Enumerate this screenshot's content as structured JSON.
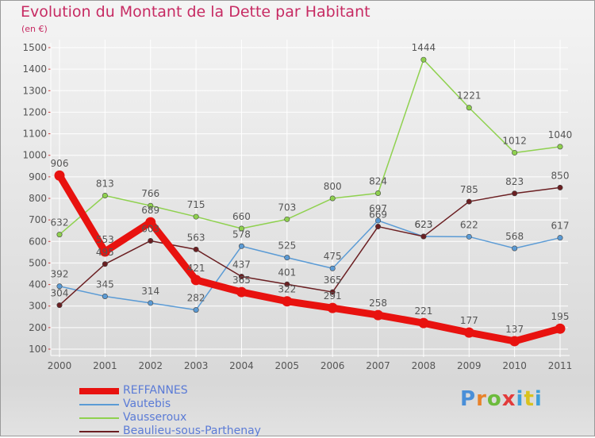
{
  "header": {
    "title": "Evolution du Montant de la Dette par Habitant",
    "subtitle": "(en €)"
  },
  "logo": {
    "text": "Proxiti"
  },
  "chart_data": {
    "type": "line",
    "title": "Evolution du Montant de la Dette par Habitant",
    "subtitle": "(en €)",
    "xlabel": "",
    "ylabel": "",
    "categories": [
      "2000",
      "2001",
      "2002",
      "2003",
      "2004",
      "2005",
      "2006",
      "2007",
      "2008",
      "2009",
      "2010",
      "2011"
    ],
    "ylim": [
      100,
      1500
    ],
    "yticks": [
      100,
      200,
      300,
      400,
      500,
      600,
      700,
      800,
      900,
      1000,
      1100,
      1200,
      1300,
      1400,
      1500
    ],
    "grid": true,
    "legend_position": "bottom-left",
    "series": [
      {
        "name": "REFFANNES",
        "color": "#e8120f",
        "legend_text_color": "#5b7bd6",
        "emphasis": true,
        "values": [
          906,
          553,
          689,
          421,
          365,
          322,
          291,
          258,
          221,
          177,
          137,
          195
        ]
      },
      {
        "name": "Vautebis",
        "color": "#5b9bd5",
        "legend_text_color": "#5b7bd6",
        "emphasis": false,
        "values": [
          392,
          345,
          314,
          282,
          578,
          525,
          475,
          697,
          623,
          622,
          568,
          617
        ]
      },
      {
        "name": "Vausseroux",
        "color": "#8fd14f",
        "legend_text_color": "#5b7bd6",
        "emphasis": false,
        "values": [
          632,
          813,
          766,
          715,
          660,
          703,
          800,
          824,
          1444,
          1221,
          1012,
          1040
        ]
      },
      {
        "name": "Beaulieu-sous-Parthenay",
        "color": "#6b1f22",
        "legend_text_color": "#5b7bd6",
        "emphasis": false,
        "values": [
          304,
          495,
          603,
          563,
          437,
          401,
          365,
          669,
          623,
          785,
          823,
          850
        ]
      }
    ]
  }
}
